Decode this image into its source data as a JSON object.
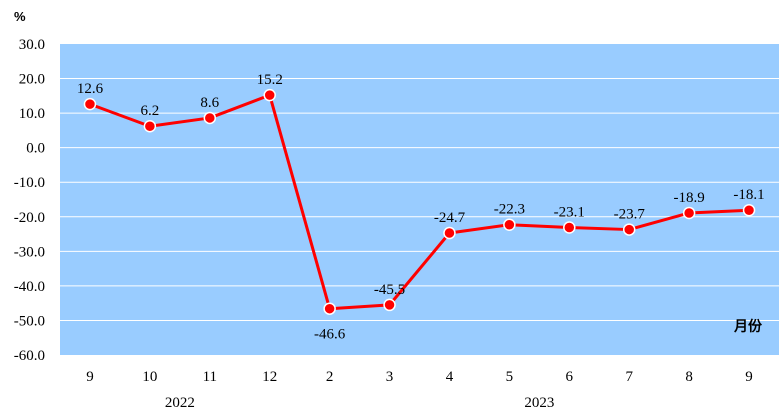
{
  "chart_data": {
    "type": "line",
    "y_unit": "%",
    "x_unit": "月份",
    "categories": [
      "9",
      "10",
      "11",
      "12",
      "2",
      "3",
      "4",
      "5",
      "6",
      "7",
      "8",
      "9"
    ],
    "year_groups": [
      {
        "label": "2022",
        "from": 0,
        "to": 3
      },
      {
        "label": "2023",
        "from": 4,
        "to": 11
      }
    ],
    "series": [
      {
        "values": [
          12.6,
          6.2,
          8.6,
          15.2,
          -46.6,
          -45.5,
          -24.7,
          -22.3,
          -23.1,
          -23.7,
          -18.9,
          -18.1
        ]
      }
    ],
    "data_labels": [
      "12.6",
      "6.2",
      "8.6",
      "15.2",
      "-46.6",
      "-45.5",
      "-24.7",
      "-22.3",
      "-23.1",
      "-23.7",
      "-18.9",
      "-18.1"
    ],
    "label_positions": [
      "above",
      "above",
      "above",
      "above",
      "below",
      "above",
      "above",
      "above",
      "above",
      "above",
      "above",
      "above"
    ],
    "ylim": [
      -60,
      30
    ],
    "yticks": [
      "30.0",
      "20.0",
      "10.0",
      "0.0",
      "-10.0",
      "-20.0",
      "-30.0",
      "-40.0",
      "-50.0",
      "-60.0"
    ],
    "grid": true,
    "colors": {
      "plot_background": "#99CCFF",
      "line": "#FF0000",
      "marker_fill": "#FF0000",
      "marker_edge": "#FFFFFF",
      "grid": "#FFFFFF"
    }
  }
}
